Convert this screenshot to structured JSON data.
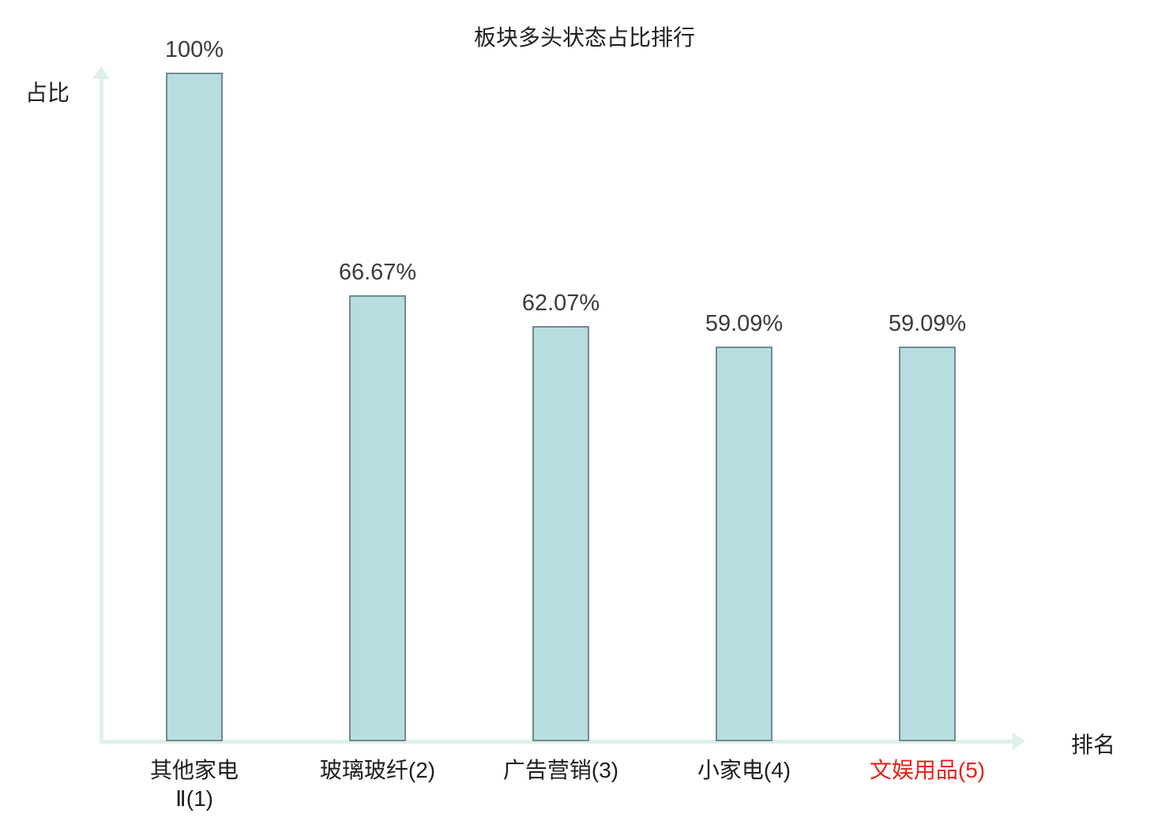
{
  "title": "板块多头状态占比排行",
  "y_axis_label": "占比",
  "x_axis_label": "排名",
  "chart_data": {
    "type": "bar",
    "categories": [
      [
        "其他家电",
        "Ⅱ(1)"
      ],
      [
        "玻璃玻纤(2)"
      ],
      [
        "广告营销(3)"
      ],
      [
        "小家电(4)"
      ],
      [
        "文娱用品(5)"
      ]
    ],
    "values": [
      100,
      66.67,
      62.07,
      59.09,
      59.09
    ],
    "value_labels": [
      "100%",
      "66.67%",
      "62.07%",
      "59.09%",
      "59.09%"
    ],
    "highlight_index": 4,
    "highlight_color": "#e82319",
    "bar_fill": "#b7dde1",
    "bar_border": "#728a8d",
    "axis_color": "#ddf0e9",
    "grid": false,
    "legend": false,
    "ylim": [
      0,
      100
    ]
  }
}
